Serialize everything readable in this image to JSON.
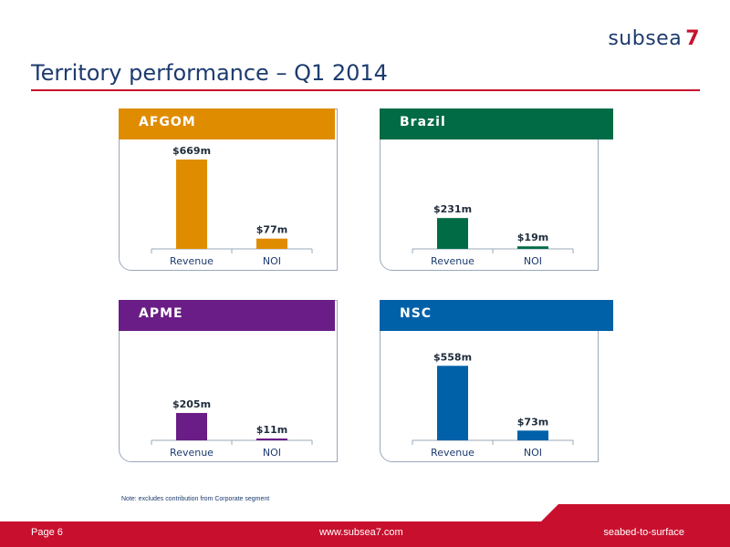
{
  "header": {
    "logo_word": "subsea",
    "logo_number": "7",
    "title": "Territory performance – Q1 2014"
  },
  "colors": {
    "afgom": "#e08c00",
    "brazil": "#006b45",
    "apme": "#6a1d86",
    "nsc": "#0061a8",
    "brand_red": "#c8102e",
    "brand_navy": "#1d3b6e"
  },
  "chart_data": [
    {
      "type": "bar",
      "title": "AFGOM",
      "categories": [
        "Revenue",
        "NOI"
      ],
      "values": [
        669,
        77
      ],
      "labels": [
        "$669m",
        "$77m"
      ],
      "ylim": [
        0,
        669
      ]
    },
    {
      "type": "bar",
      "title": "Brazil",
      "categories": [
        "Revenue",
        "NOI"
      ],
      "values": [
        231,
        19
      ],
      "labels": [
        "$231m",
        "$19m"
      ],
      "ylim": [
        0,
        669
      ]
    },
    {
      "type": "bar",
      "title": "APME",
      "categories": [
        "Revenue",
        "NOI"
      ],
      "values": [
        205,
        11
      ],
      "labels": [
        "$205m",
        "$11m"
      ],
      "ylim": [
        0,
        669
      ]
    },
    {
      "type": "bar",
      "title": "NSC",
      "categories": [
        "Revenue",
        "NOI"
      ],
      "values": [
        558,
        73
      ],
      "labels": [
        "$558m",
        "$73m"
      ],
      "ylim": [
        0,
        669
      ]
    }
  ],
  "note": "Note: excludes contribution from Corporate segment",
  "footer": {
    "page": "Page  6",
    "url": "www.subsea7.com",
    "tagline": "seabed-to-surface"
  }
}
